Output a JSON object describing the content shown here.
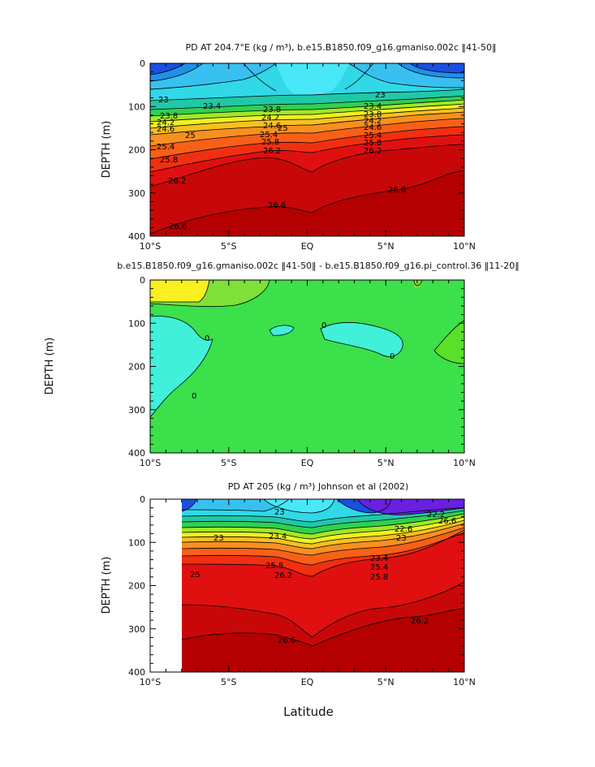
{
  "chart_data": [
    {
      "type": "contour",
      "title": "PD AT 204.7°E (kg / m³), b.e15.B1850.f09_g16.gmaniso.002c ‖41-50‖",
      "ylabel": "DEPTH (m)",
      "xlabel": "",
      "ylim": [
        0,
        400
      ],
      "yticks": [
        "0",
        "100",
        "200",
        "300",
        "400"
      ],
      "xticks": [
        "10°S",
        "5°S",
        "EQ",
        "5°N",
        "10°N"
      ],
      "xlim": [
        -10,
        10
      ],
      "contour_levels": [
        23,
        23.4,
        23.8,
        24.2,
        24.6,
        25,
        25.4,
        25.8,
        26.2,
        26.6
      ],
      "annotations": [
        "23",
        "23.4",
        "23.8",
        "24.2",
        "24.6",
        "25",
        "25.4",
        "25.8",
        "26.2",
        "26.6",
        "23.8",
        "24.2",
        "24.6",
        "25",
        "25.4",
        "25.8",
        "26.2",
        "26.6",
        "23",
        "23.4",
        "23.8",
        "24.2",
        "24.6",
        "25.4",
        "25.8",
        "26.2",
        "26.6"
      ]
    },
    {
      "type": "contour",
      "title": "b.e15.B1850.f09_g16.gmaniso.002c ‖41-50‖ - b.e15.B1850.f09_g16.pi_control.36 ‖11-20‖",
      "ylabel": "DEPTH (m)",
      "xlabel": "",
      "ylim": [
        0,
        400
      ],
      "yticks": [
        "0",
        "100",
        "200",
        "300",
        "400"
      ],
      "xticks": [
        "10°S",
        "5°S",
        "EQ",
        "5°N",
        "10°N"
      ],
      "xlim": [
        -10,
        10
      ],
      "contour_levels": [
        0
      ],
      "annotations": [
        "0",
        "0",
        "0",
        "0"
      ]
    },
    {
      "type": "contour",
      "title": "PD AT 205 (kg / m³) Johnson et al (2002)",
      "ylabel": "DEPTH (m)",
      "xlabel": "Latitude",
      "ylim": [
        0,
        400
      ],
      "yticks": [
        "0",
        "100",
        "200",
        "300",
        "400"
      ],
      "xticks": [
        "10°S",
        "5°S",
        "EQ",
        "5°N",
        "10°N"
      ],
      "xlim": [
        -10,
        10
      ],
      "contour_levels": [
        22.2,
        22.6,
        23,
        23.4,
        23.8,
        24.2,
        24.6,
        25,
        25.4,
        25.8,
        26.2,
        26.6
      ],
      "annotations": [
        "23",
        "23",
        "25",
        "23.4",
        "25.8",
        "26.2",
        "26.6",
        "22.2",
        "22.6",
        "23",
        "23.4",
        "25.4",
        "25.8",
        "26.2",
        "26.6"
      ]
    }
  ],
  "colors": {
    "deep_blue": "#1638e0",
    "sky_blue": "#3cc8f8",
    "cyan": "#40f0f0",
    "green": "#3ce04a",
    "yellow": "#f8f020",
    "orange": "#f88020",
    "red": "#e01010",
    "dark_red": "#c00000",
    "purple": "#6a20e0"
  }
}
